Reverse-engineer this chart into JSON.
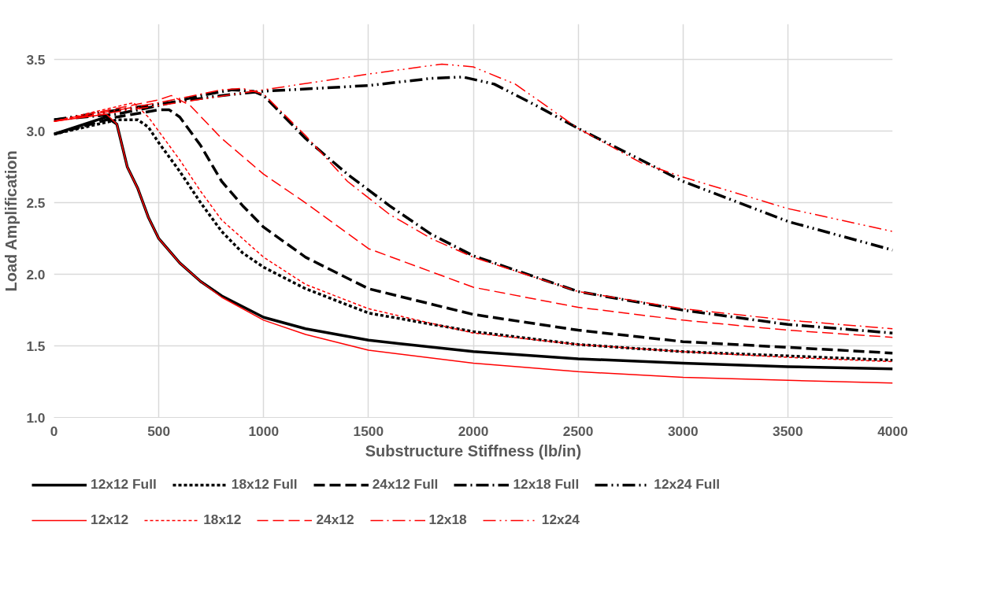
{
  "chart_data": {
    "type": "line",
    "xlabel": "Substructure Stiffness (lb/in)",
    "ylabel": "Load Amplification",
    "xlim": [
      0,
      4000
    ],
    "xticks": [
      0,
      500,
      1000,
      1500,
      2000,
      2500,
      3000,
      3500,
      4000
    ],
    "ylim": [
      1.0,
      3.75
    ],
    "yticks": [
      {
        "value": 1.0,
        "label": "1.0"
      },
      1.5,
      {
        "value": 2.0,
        "label": "2.0"
      },
      2.5,
      {
        "value": 3.0,
        "label": "3.0"
      },
      3.5
    ],
    "grid": true,
    "legend": "bottom",
    "marker": "none",
    "series": [
      {
        "name": "12x12 Full",
        "color": "#000000",
        "line_style": "solid",
        "x": [
          0,
          250,
          300,
          350,
          400,
          450,
          500,
          600,
          700,
          800,
          1000,
          1200,
          1500,
          2000,
          2500,
          3000,
          3500,
          4000
        ],
        "values": [
          2.98,
          3.1,
          3.05,
          2.75,
          2.6,
          2.4,
          2.25,
          2.08,
          1.95,
          1.85,
          1.7,
          1.62,
          1.54,
          1.46,
          1.41,
          1.38,
          1.355,
          1.34
        ]
      },
      {
        "name": "18x12 Full",
        "color": "#000000",
        "line_style": "dotted",
        "x": [
          0,
          300,
          400,
          450,
          500,
          600,
          700,
          800,
          900,
          1000,
          1200,
          1500,
          2000,
          2500,
          3000,
          3500,
          4000
        ],
        "values": [
          2.98,
          3.08,
          3.08,
          3.03,
          2.92,
          2.72,
          2.5,
          2.3,
          2.15,
          2.05,
          1.9,
          1.73,
          1.6,
          1.51,
          1.46,
          1.43,
          1.4
        ]
      },
      {
        "name": "24x12 Full",
        "color": "#000000",
        "line_style": "dashed",
        "x": [
          0,
          300,
          500,
          550,
          600,
          700,
          800,
          900,
          1000,
          1200,
          1500,
          2000,
          2500,
          3000,
          3500,
          4000
        ],
        "values": [
          2.98,
          3.1,
          3.15,
          3.15,
          3.1,
          2.9,
          2.65,
          2.48,
          2.33,
          2.12,
          1.9,
          1.72,
          1.61,
          1.53,
          1.49,
          1.45
        ]
      },
      {
        "name": "12x18 Full",
        "color": "#000000",
        "line_style": "dashdot",
        "x": [
          0,
          300,
          500,
          700,
          850,
          950,
          1000,
          1100,
          1200,
          1400,
          1600,
          1800,
          2000,
          2500,
          3000,
          3500,
          4000
        ],
        "values": [
          3.08,
          3.12,
          3.18,
          3.25,
          3.29,
          3.28,
          3.25,
          3.1,
          2.95,
          2.7,
          2.48,
          2.28,
          2.13,
          1.88,
          1.75,
          1.65,
          1.59
        ]
      },
      {
        "name": "12x24 Full",
        "color": "#000000",
        "line_style": "dashdotdot",
        "x": [
          0,
          400,
          800,
          1000,
          1500,
          1800,
          1950,
          2100,
          2300,
          2500,
          2800,
          3000,
          3500,
          4000
        ],
        "values": [
          3.08,
          3.17,
          3.25,
          3.28,
          3.32,
          3.37,
          3.38,
          3.33,
          3.18,
          3.02,
          2.8,
          2.65,
          2.37,
          2.17
        ]
      },
      {
        "name": "12x12",
        "color": "#ff0000",
        "line_style": "solid",
        "x": [
          0,
          250,
          300,
          350,
          400,
          450,
          500,
          600,
          700,
          800,
          1000,
          1200,
          1500,
          2000,
          2500,
          3000,
          3500,
          4000
        ],
        "values": [
          3.07,
          3.12,
          3.05,
          2.75,
          2.6,
          2.4,
          2.25,
          2.08,
          1.95,
          1.84,
          1.68,
          1.58,
          1.47,
          1.38,
          1.32,
          1.28,
          1.26,
          1.24
        ]
      },
      {
        "name": "18x12",
        "color": "#ff0000",
        "line_style": "dotted",
        "x": [
          0,
          380,
          450,
          500,
          600,
          700,
          800,
          1000,
          1200,
          1500,
          2000,
          2500,
          3000,
          3500,
          4000
        ],
        "values": [
          3.07,
          3.2,
          3.1,
          3.0,
          2.8,
          2.58,
          2.38,
          2.12,
          1.93,
          1.76,
          1.59,
          1.51,
          1.46,
          1.42,
          1.39
        ]
      },
      {
        "name": "24x12",
        "color": "#ff0000",
        "line_style": "dashed",
        "x": [
          0,
          500,
          560,
          650,
          800,
          1000,
          1200,
          1500,
          2000,
          2500,
          3000,
          3500,
          4000
        ],
        "values": [
          3.07,
          3.22,
          3.25,
          3.18,
          2.95,
          2.7,
          2.5,
          2.18,
          1.91,
          1.77,
          1.68,
          1.61,
          1.56
        ]
      },
      {
        "name": "12x18",
        "color": "#ff0000",
        "line_style": "dashdot",
        "x": [
          0,
          500,
          800,
          900,
          1000,
          1200,
          1400,
          1600,
          1800,
          2000,
          2500,
          3000,
          3500,
          4000
        ],
        "values": [
          3.07,
          3.2,
          3.29,
          3.3,
          3.26,
          2.97,
          2.65,
          2.42,
          2.25,
          2.12,
          1.88,
          1.76,
          1.68,
          1.62
        ]
      },
      {
        "name": "12x24",
        "color": "#ff0000",
        "line_style": "dashdotdot",
        "x": [
          0,
          500,
          1000,
          1500,
          1850,
          2000,
          2200,
          2500,
          2800,
          3000,
          3500,
          4000
        ],
        "values": [
          3.07,
          3.18,
          3.29,
          3.4,
          3.47,
          3.45,
          3.33,
          3.02,
          2.78,
          2.68,
          2.46,
          2.3
        ]
      }
    ]
  }
}
